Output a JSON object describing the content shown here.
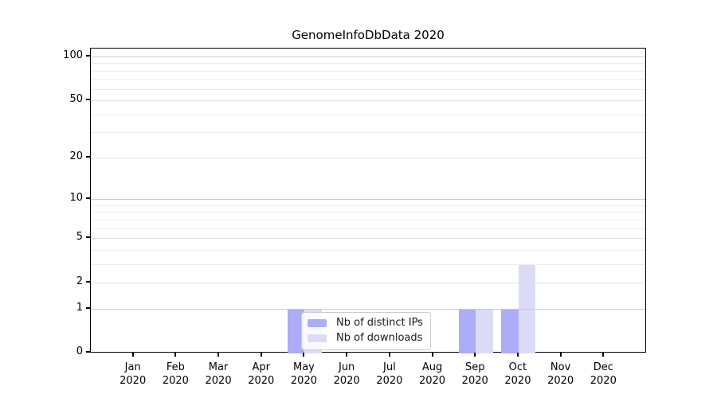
{
  "title": "GenomeInfoDbData 2020",
  "chart_data": {
    "type": "bar",
    "title": "GenomeInfoDbData 2020",
    "categories": [
      "Jan 2020",
      "Feb 2020",
      "Mar 2020",
      "Apr 2020",
      "May 2020",
      "Jun 2020",
      "Jul 2020",
      "Aug 2020",
      "Sep 2020",
      "Oct 2020",
      "Nov 2020",
      "Dec 2020"
    ],
    "series": [
      {
        "name": "Nb of distinct IPs",
        "color": "#acacf8",
        "values": [
          0,
          0,
          0,
          0,
          1,
          0,
          0,
          0,
          1,
          1,
          0,
          0
        ]
      },
      {
        "name": "Nb of downloads",
        "color": "#dbdbf8",
        "values": [
          0,
          0,
          0,
          0,
          1,
          0,
          0,
          0,
          1,
          3,
          0,
          0
        ]
      }
    ],
    "xlabel": "",
    "ylabel": "",
    "yscale": "log1p",
    "ylim": [
      0,
      113
    ],
    "yticks": [
      0,
      1,
      2,
      5,
      10,
      20,
      50,
      100
    ],
    "minor_gridlines": [
      3,
      4,
      6,
      7,
      8,
      9,
      30,
      40,
      60,
      70,
      80,
      90
    ],
    "grid": "horizontal-only",
    "legend": {
      "position": "inside-lower-center",
      "items": [
        "Nb of distinct IPs",
        "Nb of downloads"
      ]
    },
    "colors": {
      "axis": "#000000",
      "decade_gridline": "#cccccc",
      "major_gridline": "#e2e2e2",
      "minor_gridline": "#ececec",
      "background": "#ffffff"
    }
  }
}
